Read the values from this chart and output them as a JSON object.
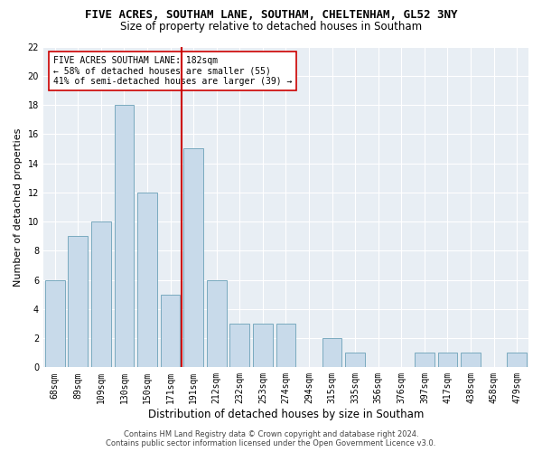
{
  "title_line1": "FIVE ACRES, SOUTHAM LANE, SOUTHAM, CHELTENHAM, GL52 3NY",
  "title_line2": "Size of property relative to detached houses in Southam",
  "xlabel": "Distribution of detached houses by size in Southam",
  "ylabel": "Number of detached properties",
  "categories": [
    "68sqm",
    "89sqm",
    "109sqm",
    "130sqm",
    "150sqm",
    "171sqm",
    "191sqm",
    "212sqm",
    "232sqm",
    "253sqm",
    "274sqm",
    "294sqm",
    "315sqm",
    "335sqm",
    "356sqm",
    "376sqm",
    "397sqm",
    "417sqm",
    "438sqm",
    "458sqm",
    "479sqm"
  ],
  "values": [
    6,
    9,
    10,
    18,
    12,
    5,
    15,
    6,
    3,
    3,
    3,
    0,
    2,
    1,
    0,
    0,
    1,
    1,
    1,
    0,
    1
  ],
  "bar_color": "#c8daea",
  "bar_edge_color": "#7aaabf",
  "reference_line_color": "#cc0000",
  "annotation_text": "FIVE ACRES SOUTHAM LANE: 182sqm\n← 58% of detached houses are smaller (55)\n41% of semi-detached houses are larger (39) →",
  "annotation_box_color": "#ffffff",
  "annotation_box_edge_color": "#cc0000",
  "ylim": [
    0,
    22
  ],
  "yticks": [
    0,
    2,
    4,
    6,
    8,
    10,
    12,
    14,
    16,
    18,
    20,
    22
  ],
  "footer_line1": "Contains HM Land Registry data © Crown copyright and database right 2024.",
  "footer_line2": "Contains public sector information licensed under the Open Government Licence v3.0.",
  "bg_color": "#ffffff",
  "plot_bg_color": "#e8eef4",
  "grid_color": "#ffffff",
  "title_fontsize": 9,
  "subtitle_fontsize": 8.5,
  "axis_label_fontsize": 8,
  "tick_fontsize": 7,
  "annotation_fontsize": 7,
  "footer_fontsize": 6
}
